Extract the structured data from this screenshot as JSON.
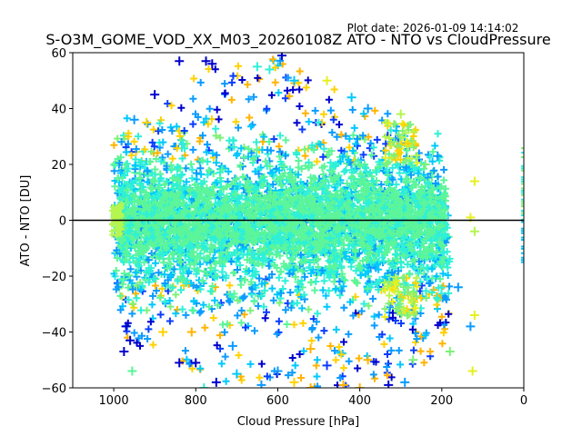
{
  "chart_data": {
    "type": "scatter",
    "title": "S-O3M_GOME_VOD_XX_M03_20260108Z ATO - NTO vs CloudPressure",
    "subtitle": "Plot date: 2026-01-09 14:14:02",
    "xlabel": "Cloud Pressure [hPa]",
    "ylabel": "ATO - NTO [DU]",
    "xlim": [
      1100,
      0
    ],
    "ylim": [
      -60,
      60
    ],
    "x_inverted": true,
    "xticks": [
      1000,
      800,
      600,
      400,
      200,
      0
    ],
    "xtick_labels": [
      "1000",
      "800",
      "600",
      "400",
      "200",
      "0"
    ],
    "yticks": [
      -60,
      -40,
      -20,
      0,
      20,
      40,
      60
    ],
    "ytick_labels": [
      "−60",
      "−40",
      "−20",
      "0",
      "20",
      "40",
      "60"
    ],
    "grid": false,
    "legend": "none",
    "marker": "plus",
    "reference_line": {
      "y": 0,
      "color": "#000000"
    },
    "colormap": "jet",
    "palette": [
      "#0000cd",
      "#0a3cff",
      "#0a9bff",
      "#00c8ff",
      "#2ef0d8",
      "#5cf59a",
      "#7ff07a",
      "#b4f550",
      "#e6f020",
      "#ffd200",
      "#ffb400"
    ],
    "distribution": {
      "description": "Dense cloud of points spanning ~1000 to ~180 hPa, centred near 0 DU with core roughly -20..+20 DU, sparse outliers reaching +59 and -60 DU; a thin vertical strip of points at 0 hPa between about +26 and -15 DU.",
      "core": {
        "x_range": [
          1000,
          180
        ],
        "y_center": 0,
        "y_spread": 20,
        "dominant_color": "#5cf59a"
      },
      "upper_envelope": [
        [
          1000,
          30
        ],
        [
          950,
          37
        ],
        [
          850,
          45
        ],
        [
          800,
          52
        ],
        [
          750,
          57
        ],
        [
          600,
          58
        ],
        [
          500,
          50
        ],
        [
          400,
          42
        ],
        [
          300,
          37
        ],
        [
          250,
          25
        ],
        [
          200,
          15
        ],
        [
          180,
          8
        ]
      ],
      "lower_envelope": [
        [
          1000,
          -20
        ],
        [
          970,
          -48
        ],
        [
          850,
          -52
        ],
        [
          750,
          -58
        ],
        [
          650,
          -60
        ],
        [
          500,
          -60
        ],
        [
          400,
          -60
        ],
        [
          300,
          -58
        ],
        [
          250,
          -52
        ],
        [
          200,
          -45
        ],
        [
          180,
          -35
        ]
      ],
      "zero_pressure_strip": {
        "x": 0,
        "y_range": [
          -15,
          26
        ]
      }
    },
    "representative_points": [
      {
        "x": 840,
        "y": 57,
        "c": 0
      },
      {
        "x": 775,
        "y": 57,
        "c": 0
      },
      {
        "x": 590,
        "y": 59,
        "c": 0
      },
      {
        "x": 760,
        "y": 56,
        "c": 0
      },
      {
        "x": 650,
        "y": 55,
        "c": 4
      },
      {
        "x": 620,
        "y": 54,
        "c": 4
      },
      {
        "x": 480,
        "y": 50,
        "c": 8
      },
      {
        "x": 900,
        "y": 45,
        "c": 0
      },
      {
        "x": 560,
        "y": 50,
        "c": 3
      },
      {
        "x": 420,
        "y": 44,
        "c": 3
      },
      {
        "x": 380,
        "y": 40,
        "c": 2
      },
      {
        "x": 300,
        "y": 38,
        "c": 7
      },
      {
        "x": 950,
        "y": 36,
        "c": 2
      },
      {
        "x": 920,
        "y": 35,
        "c": 9
      },
      {
        "x": 210,
        "y": 23,
        "c": 2
      },
      {
        "x": 240,
        "y": 20,
        "c": 6
      },
      {
        "x": 120,
        "y": 14,
        "c": 8
      },
      {
        "x": 130,
        "y": 1,
        "c": 8
      },
      {
        "x": 120,
        "y": -4,
        "c": 7
      },
      {
        "x": 130,
        "y": -38,
        "c": 2
      },
      {
        "x": 120,
        "y": -34,
        "c": 8
      },
      {
        "x": 180,
        "y": -47,
        "c": 6
      },
      {
        "x": 125,
        "y": -54,
        "c": 8
      },
      {
        "x": 160,
        "y": -24,
        "c": 2
      },
      {
        "x": 975,
        "y": -47,
        "c": 0
      },
      {
        "x": 960,
        "y": -43,
        "c": 0
      },
      {
        "x": 970,
        "y": -38,
        "c": 0
      },
      {
        "x": 955,
        "y": -54,
        "c": 5
      },
      {
        "x": 840,
        "y": -51,
        "c": 0
      },
      {
        "x": 800,
        "y": -51,
        "c": 0
      },
      {
        "x": 750,
        "y": -58,
        "c": 0
      },
      {
        "x": 640,
        "y": -59,
        "c": 2
      },
      {
        "x": 560,
        "y": -58,
        "c": 9
      },
      {
        "x": 520,
        "y": -60,
        "c": 10
      },
      {
        "x": 440,
        "y": -59,
        "c": 10
      },
      {
        "x": 400,
        "y": -60,
        "c": 10
      },
      {
        "x": 330,
        "y": -59,
        "c": 0
      },
      {
        "x": 290,
        "y": -58,
        "c": 2
      },
      {
        "x": 780,
        "y": -60,
        "c": 4
      },
      {
        "x": 700,
        "y": -55,
        "c": 3
      },
      {
        "x": 600,
        "y": -54,
        "c": 2
      },
      {
        "x": 480,
        "y": -52,
        "c": 1
      },
      {
        "x": 380,
        "y": -50,
        "c": 10
      },
      {
        "x": 270,
        "y": -50,
        "c": 6
      },
      {
        "x": 880,
        "y": -40,
        "c": 9
      },
      {
        "x": 810,
        "y": -40,
        "c": 10
      },
      {
        "x": 710,
        "y": -45,
        "c": 2
      },
      {
        "x": 520,
        "y": -46,
        "c": 10
      }
    ]
  }
}
